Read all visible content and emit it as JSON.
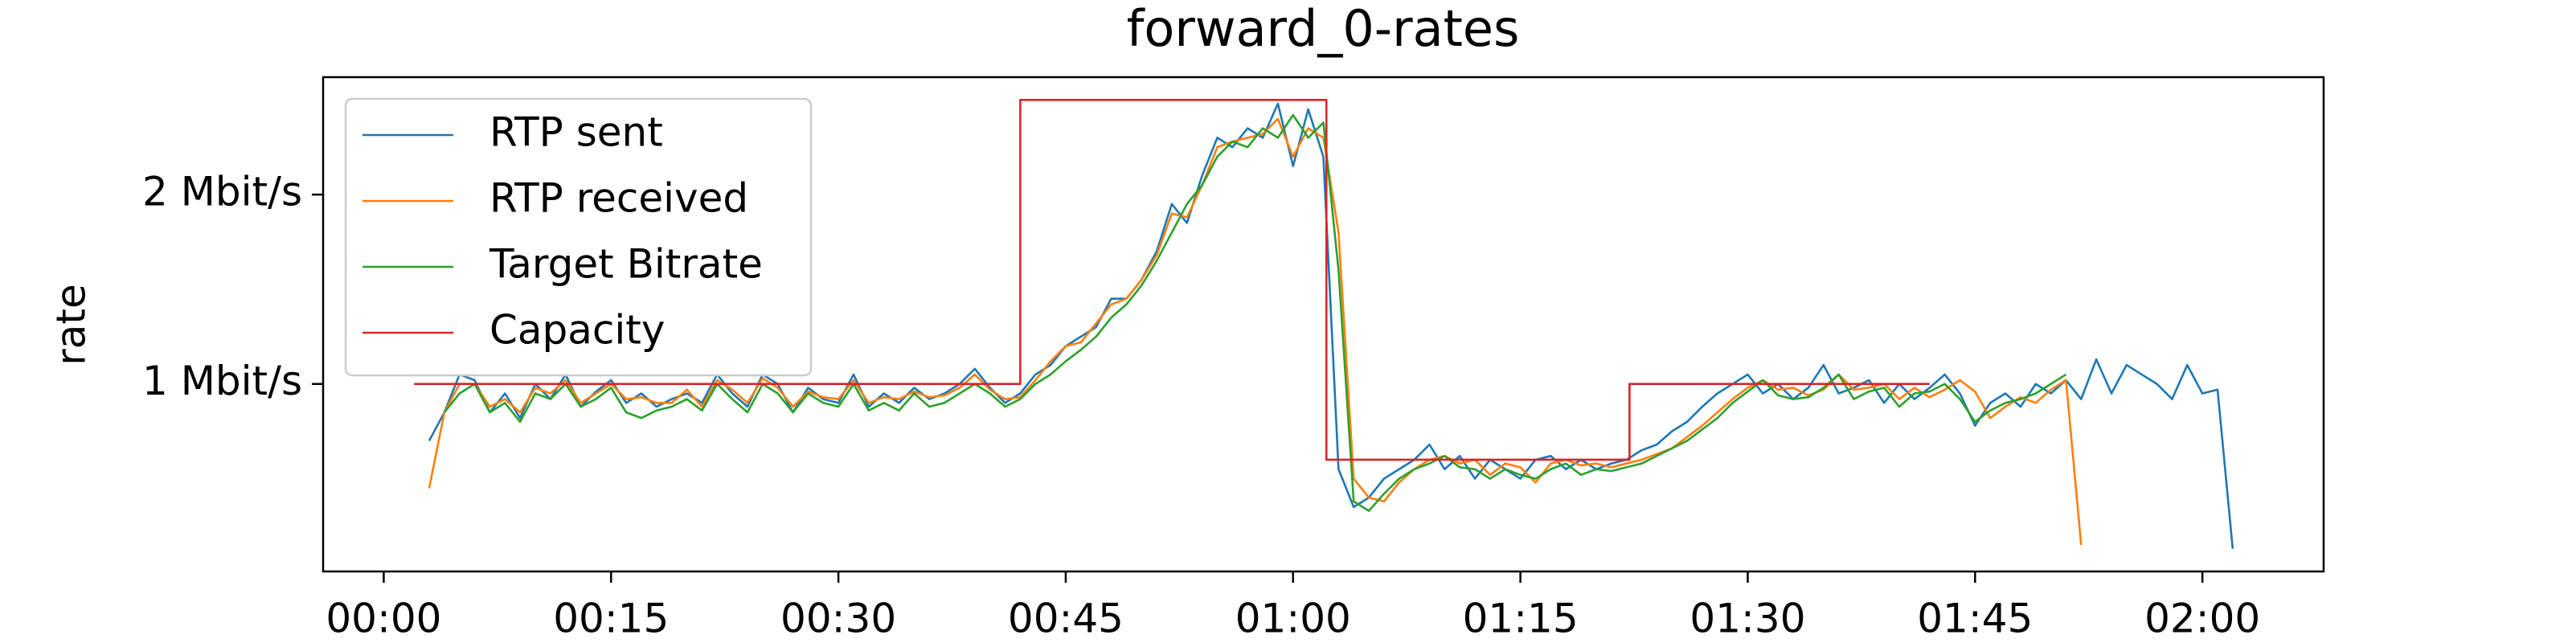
{
  "chart_data": {
    "type": "line",
    "title": "forward_0-rates",
    "y_label": "rate",
    "xlim": [
      -4,
      128
    ],
    "ylim": [
      0.01,
      2.62
    ],
    "xticks": [
      {
        "value": 0,
        "label": "00:00"
      },
      {
        "value": 15,
        "label": "00:15"
      },
      {
        "value": 30,
        "label": "00:30"
      },
      {
        "value": 45,
        "label": "00:45"
      },
      {
        "value": 60,
        "label": "01:00"
      },
      {
        "value": 75,
        "label": "01:15"
      },
      {
        "value": 90,
        "label": "01:30"
      },
      {
        "value": 105,
        "label": "01:45"
      },
      {
        "value": 120,
        "label": "02:00"
      }
    ],
    "yticks": [
      {
        "value": 1,
        "label": "1 Mbit/s"
      },
      {
        "value": 2,
        "label": "2 Mbit/s"
      }
    ],
    "grid": false,
    "legend": "upper left",
    "series": [
      {
        "name": "RTP sent",
        "color": "#1f77b4",
        "x": [
          3,
          4,
          5,
          6,
          7,
          8,
          9,
          10,
          11,
          12,
          13,
          14,
          15,
          16,
          17,
          18,
          19,
          20,
          21,
          22,
          23,
          24,
          25,
          26,
          27,
          28,
          29,
          30,
          31,
          32,
          33,
          34,
          35,
          36,
          37,
          38,
          39,
          40,
          41,
          42,
          43,
          44,
          45,
          46,
          47,
          48,
          49,
          50,
          51,
          52,
          53,
          54,
          55,
          56,
          57,
          58,
          59,
          60,
          61,
          62,
          63,
          64,
          65,
          66,
          67,
          68,
          69,
          70,
          71,
          72,
          73,
          74,
          75,
          76,
          77,
          78,
          79,
          80,
          81,
          82,
          83,
          84,
          85,
          86,
          87,
          88,
          89,
          90,
          91,
          92,
          93,
          94,
          95,
          96,
          97,
          98,
          99,
          100,
          101,
          102,
          103,
          104,
          105,
          106,
          107,
          108,
          109,
          110,
          111,
          112,
          113,
          114,
          115,
          116,
          117,
          118,
          119,
          120,
          121,
          122
        ],
        "values": [
          0.7,
          0.85,
          1.05,
          1.02,
          0.85,
          0.95,
          0.82,
          1.0,
          0.92,
          1.05,
          0.88,
          0.96,
          1.02,
          0.9,
          0.95,
          0.88,
          0.92,
          0.95,
          0.9,
          1.05,
          0.95,
          0.88,
          1.05,
          1.0,
          0.85,
          0.98,
          0.92,
          0.9,
          1.05,
          0.88,
          0.95,
          0.9,
          0.98,
          0.92,
          0.95,
          1.0,
          1.08,
          0.98,
          0.9,
          0.95,
          1.05,
          1.1,
          1.2,
          1.25,
          1.3,
          1.45,
          1.45,
          1.55,
          1.7,
          1.95,
          1.85,
          2.1,
          2.3,
          2.25,
          2.35,
          2.3,
          2.48,
          2.15,
          2.45,
          2.2,
          0.55,
          0.35,
          0.4,
          0.5,
          0.55,
          0.6,
          0.68,
          0.55,
          0.62,
          0.5,
          0.6,
          0.55,
          0.5,
          0.6,
          0.62,
          0.55,
          0.6,
          0.55,
          0.58,
          0.6,
          0.65,
          0.68,
          0.75,
          0.8,
          0.88,
          0.95,
          1.0,
          1.05,
          0.95,
          1.0,
          0.92,
          0.98,
          1.1,
          0.95,
          0.98,
          1.02,
          0.9,
          1.0,
          0.92,
          0.98,
          1.05,
          0.95,
          0.78,
          0.9,
          0.95,
          0.88,
          1.0,
          0.95,
          1.02,
          0.92,
          1.13,
          0.95,
          1.1,
          1.05,
          1.0,
          0.92,
          1.1,
          0.95,
          0.97,
          0.13
        ]
      },
      {
        "name": "RTP received",
        "color": "#ff7f0e",
        "x": [
          3,
          4,
          5,
          6,
          7,
          8,
          9,
          10,
          11,
          12,
          13,
          14,
          15,
          16,
          17,
          18,
          19,
          20,
          21,
          22,
          23,
          24,
          25,
          26,
          27,
          28,
          29,
          30,
          31,
          32,
          33,
          34,
          35,
          36,
          37,
          38,
          39,
          40,
          41,
          42,
          43,
          44,
          45,
          46,
          47,
          48,
          49,
          50,
          51,
          52,
          53,
          54,
          55,
          56,
          57,
          58,
          59,
          60,
          61,
          62,
          63,
          64,
          65,
          66,
          67,
          68,
          69,
          70,
          71,
          72,
          73,
          74,
          75,
          76,
          77,
          78,
          79,
          80,
          81,
          82,
          83,
          84,
          85,
          86,
          87,
          88,
          89,
          90,
          91,
          92,
          93,
          94,
          95,
          96,
          97,
          98,
          99,
          100,
          101,
          102,
          103,
          104,
          105,
          106,
          107,
          108,
          109,
          110,
          111,
          112
        ],
        "values": [
          0.45,
          0.85,
          1.0,
          1.0,
          0.88,
          0.92,
          0.85,
          0.98,
          0.95,
          1.02,
          0.9,
          0.95,
          1.0,
          0.92,
          0.93,
          0.9,
          0.9,
          0.97,
          0.88,
          1.02,
          0.97,
          0.9,
          1.03,
          0.98,
          0.88,
          0.96,
          0.93,
          0.92,
          1.02,
          0.9,
          0.93,
          0.92,
          0.96,
          0.93,
          0.94,
          0.98,
          1.05,
          0.97,
          0.92,
          0.93,
          1.02,
          1.12,
          1.2,
          1.22,
          1.32,
          1.42,
          1.45,
          1.55,
          1.68,
          1.9,
          1.88,
          2.05,
          2.25,
          2.28,
          2.3,
          2.32,
          2.4,
          2.2,
          2.35,
          2.3,
          1.8,
          0.5,
          0.4,
          0.38,
          0.48,
          0.55,
          0.6,
          0.62,
          0.58,
          0.6,
          0.52,
          0.58,
          0.56,
          0.48,
          0.58,
          0.6,
          0.57,
          0.58,
          0.56,
          0.58,
          0.6,
          0.63,
          0.66,
          0.72,
          0.78,
          0.85,
          0.92,
          0.98,
          1.02,
          0.97,
          0.98,
          0.94,
          0.97,
          1.05,
          0.97,
          0.98,
          1.0,
          0.92,
          0.98,
          0.93,
          0.97,
          1.02,
          0.96,
          0.82,
          0.88,
          0.93,
          0.9,
          0.97,
          1.02,
          0.15
        ]
      },
      {
        "name": "Target Bitrate",
        "color": "#2ca02c",
        "x": [
          4,
          5,
          6,
          7,
          8,
          9,
          10,
          11,
          12,
          13,
          14,
          15,
          16,
          17,
          18,
          19,
          20,
          21,
          22,
          23,
          24,
          25,
          26,
          27,
          28,
          29,
          30,
          31,
          32,
          33,
          34,
          35,
          36,
          37,
          38,
          39,
          40,
          41,
          42,
          43,
          44,
          45,
          46,
          47,
          48,
          49,
          50,
          51,
          52,
          53,
          54,
          55,
          56,
          57,
          58,
          59,
          60,
          61,
          62,
          63,
          64,
          65,
          66,
          67,
          68,
          69,
          70,
          71,
          72,
          73,
          74,
          75,
          76,
          77,
          78,
          79,
          80,
          81,
          82,
          83,
          84,
          85,
          86,
          87,
          88,
          89,
          90,
          91,
          92,
          93,
          94,
          95,
          96,
          97,
          98,
          99,
          100,
          101,
          102,
          103,
          104,
          105,
          106,
          107,
          108,
          109,
          110,
          111
        ],
        "values": [
          0.85,
          0.95,
          1.0,
          0.85,
          0.9,
          0.8,
          0.95,
          0.92,
          1.0,
          0.88,
          0.92,
          0.98,
          0.85,
          0.82,
          0.86,
          0.88,
          0.92,
          0.86,
          1.0,
          0.92,
          0.85,
          1.0,
          0.95,
          0.85,
          0.95,
          0.9,
          0.88,
          1.0,
          0.86,
          0.9,
          0.86,
          0.95,
          0.88,
          0.9,
          0.95,
          1.0,
          0.95,
          0.88,
          0.92,
          1.0,
          1.05,
          1.12,
          1.18,
          1.25,
          1.35,
          1.42,
          1.52,
          1.65,
          1.8,
          1.95,
          2.05,
          2.2,
          2.28,
          2.25,
          2.35,
          2.3,
          2.42,
          2.3,
          2.38,
          1.6,
          0.38,
          0.33,
          0.42,
          0.5,
          0.55,
          0.58,
          0.62,
          0.56,
          0.55,
          0.5,
          0.55,
          0.52,
          0.5,
          0.55,
          0.58,
          0.52,
          0.55,
          0.54,
          0.56,
          0.58,
          0.62,
          0.66,
          0.7,
          0.76,
          0.82,
          0.9,
          0.96,
          1.02,
          0.94,
          0.92,
          0.93,
          0.98,
          1.05,
          0.92,
          0.96,
          0.98,
          0.88,
          0.95,
          0.96,
          1.0,
          0.92,
          0.8,
          0.86,
          0.9,
          0.92,
          0.95,
          1.0,
          1.05
        ]
      },
      {
        "name": "Capacity",
        "color": "#d62728",
        "x": [
          2,
          42,
          42,
          62.2,
          62.2,
          82.2,
          82.2,
          102
        ],
        "values": [
          1,
          1,
          2.5,
          2.5,
          0.6,
          0.6,
          1,
          1
        ]
      }
    ]
  }
}
